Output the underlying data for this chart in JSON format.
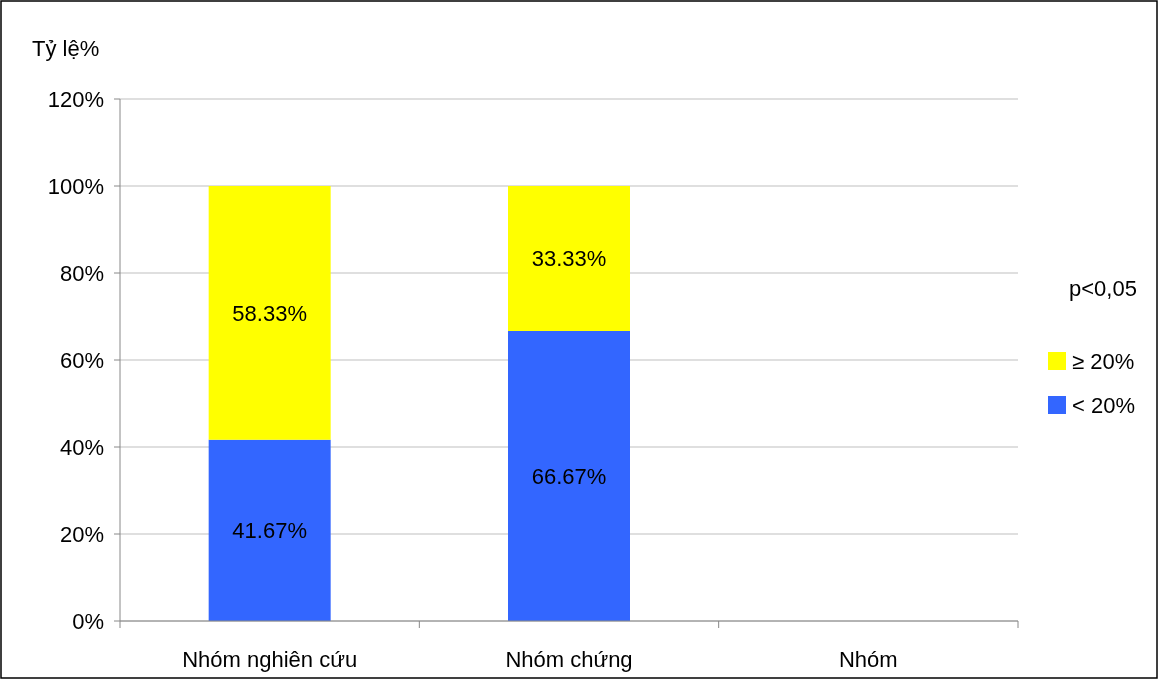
{
  "chart_data": {
    "type": "bar",
    "stacked": true,
    "ylabel": "Tỷ lệ%",
    "categories": [
      "Nhóm nghiên cứu",
      "Nhóm chứng",
      "Nhóm"
    ],
    "series": [
      {
        "name": "< 20%",
        "color": "#3366ff",
        "values": [
          41.67,
          66.67,
          null
        ],
        "value_labels": [
          "41.67%",
          "66.67%",
          null
        ]
      },
      {
        "name": "≥ 20%",
        "color": "#ffff00",
        "values": [
          58.33,
          33.33,
          null
        ],
        "value_labels": [
          "58.33%",
          "33.33%",
          null
        ]
      }
    ],
    "ylim": [
      0,
      120
    ],
    "yticks": [
      {
        "value": 0,
        "label": "0%"
      },
      {
        "value": 20,
        "label": "20%"
      },
      {
        "value": 40,
        "label": "40%"
      },
      {
        "value": 60,
        "label": "60%"
      },
      {
        "value": 80,
        "label": "80%"
      },
      {
        "value": 100,
        "label": "100%"
      },
      {
        "value": 120,
        "label": "120%"
      }
    ],
    "grid": "y",
    "legend": "right",
    "annotations": [
      "p<0,05"
    ]
  }
}
